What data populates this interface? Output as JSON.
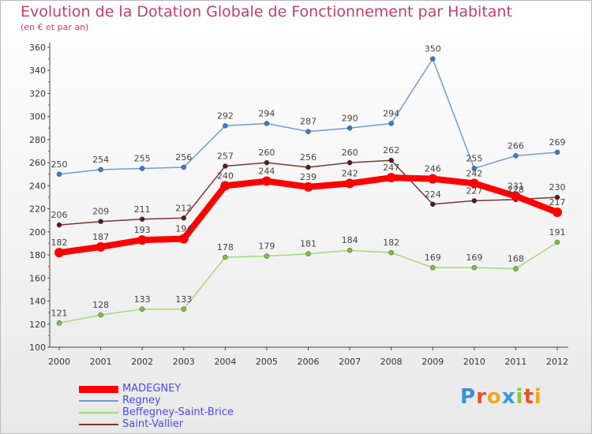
{
  "header": {
    "title": "Evolution de la Dotation Globale de Fonctionnement par Habitant",
    "subtitle": "(en € et par an)"
  },
  "logo": {
    "text": "Proxiti"
  },
  "chart_data": {
    "type": "line",
    "x": [
      "2000",
      "2001",
      "2002",
      "2003",
      "2004",
      "2005",
      "2006",
      "2007",
      "2008",
      "2009",
      "2010",
      "2011",
      "2012"
    ],
    "ylim": [
      100,
      360
    ],
    "yticks": [
      100,
      120,
      140,
      160,
      180,
      200,
      220,
      240,
      260,
      280,
      300,
      320,
      340,
      360
    ],
    "grid": false,
    "legend_position": "bottom-left",
    "series": [
      {
        "name": "Regney",
        "color": "#6aa0d0",
        "point_color": "#3a7fc4",
        "width": 1.5,
        "values": [
          250,
          254,
          255,
          256,
          292,
          294,
          287,
          290,
          294,
          350,
          255,
          266,
          269
        ]
      },
      {
        "name": "Beffegney-Saint-Brice",
        "color": "#a3d977",
        "point_color": "#7cc443",
        "width": 1.5,
        "values": [
          121,
          128,
          133,
          133,
          178,
          179,
          181,
          184,
          182,
          169,
          169,
          168,
          191
        ]
      },
      {
        "name": "Saint-Vallier",
        "color": "#7a3535",
        "point_color": "#5a1a1a",
        "width": 1.5,
        "values": [
          206,
          209,
          211,
          212,
          257,
          260,
          256,
          260,
          262,
          224,
          227,
          228,
          230
        ]
      },
      {
        "name": "MADEGNEY",
        "color": "#ff0000",
        "point_color": "#ff0000",
        "width": 8,
        "values": [
          182,
          187,
          193,
          194,
          240,
          244,
          239,
          242,
          247,
          246,
          242,
          231,
          217
        ]
      }
    ],
    "legend_order": [
      3,
      0,
      1,
      2
    ]
  }
}
